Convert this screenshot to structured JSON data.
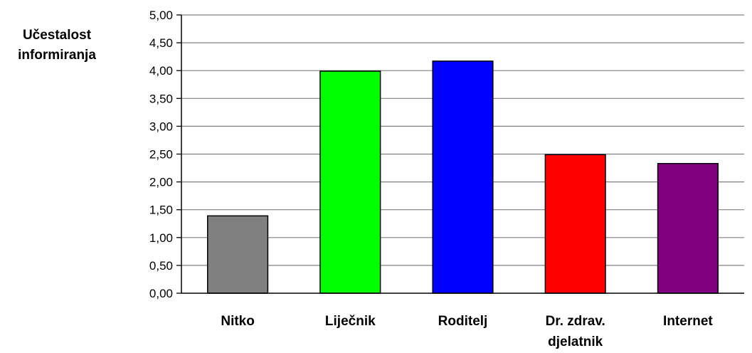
{
  "chart_data": {
    "type": "bar",
    "title": "",
    "xlabel": "",
    "ylabel_lines": [
      "Učestalost",
      "informiranja"
    ],
    "categories": [
      [
        "Nitko"
      ],
      [
        "Liječnik"
      ],
      [
        "Roditelj"
      ],
      [
        "Dr. zdrav.",
        "djelatnik"
      ],
      [
        "Internet"
      ]
    ],
    "values": [
      1.39,
      3.99,
      4.17,
      2.49,
      2.33
    ],
    "bar_colors": [
      "#808080",
      "#00ff00",
      "#0000ff",
      "#ff0000",
      "#800080"
    ],
    "ylim": [
      0,
      5
    ],
    "yticks": [
      0,
      0.5,
      1,
      1.5,
      2,
      2.5,
      3,
      3.5,
      4,
      4.5,
      5
    ],
    "ytick_labels": [
      "0,00",
      "0,50",
      "1,00",
      "1,50",
      "2,00",
      "2,50",
      "3,00",
      "3,50",
      "4,00",
      "4,50",
      "5,00"
    ],
    "grid": true,
    "grid_color": "#808080",
    "legend": "none"
  }
}
